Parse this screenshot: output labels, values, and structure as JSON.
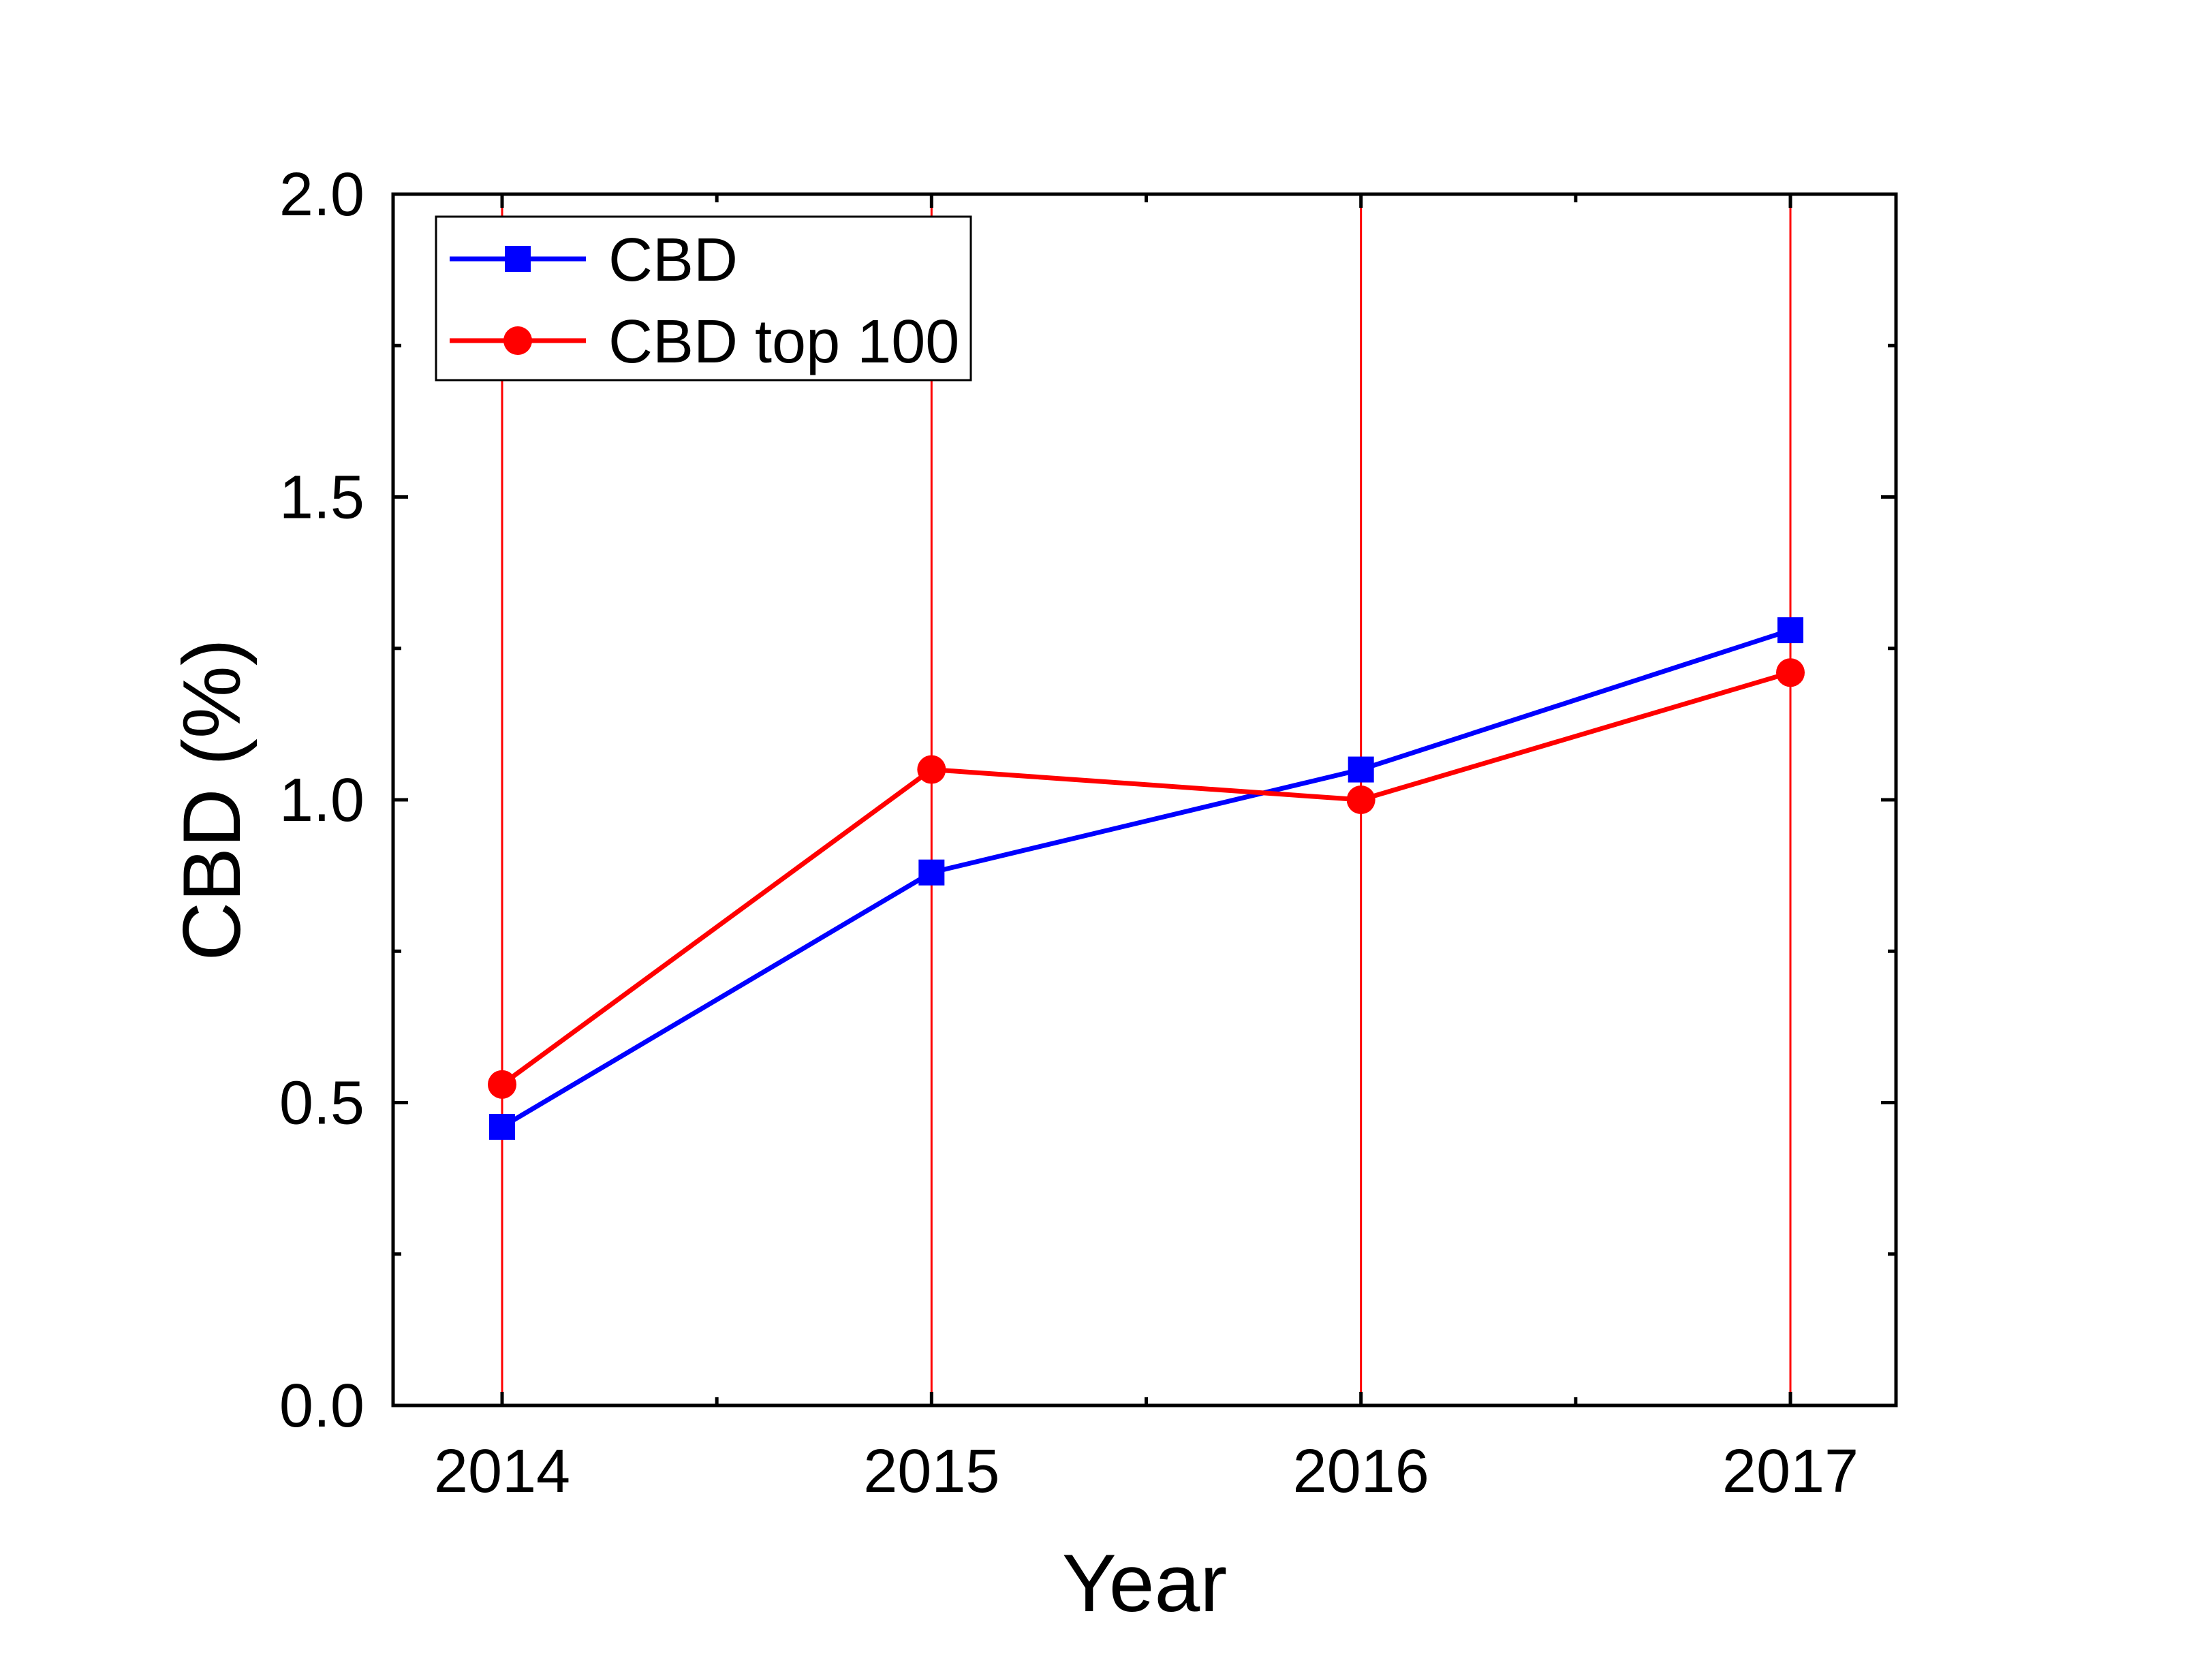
{
  "chart_data": {
    "type": "line",
    "title": "",
    "xlabel": "Year",
    "ylabel": "CBD (%)",
    "categories": [
      "2014",
      "2015",
      "2016",
      "2017"
    ],
    "ylim": [
      0,
      2.0
    ],
    "yticks": [
      "0.0",
      "0.5",
      "1.0",
      "1.5",
      "2.0"
    ],
    "grid": "vertical lines at each year",
    "legend_position": "top-left",
    "series": [
      {
        "name": "CBD",
        "marker": "square",
        "color": "#0000ff",
        "values": [
          0.46,
          0.88,
          1.05,
          1.28
        ]
      },
      {
        "name": "CBD top 100",
        "marker": "circle",
        "color": "#ff0000",
        "values": [
          0.53,
          1.05,
          1.0,
          1.21
        ]
      }
    ],
    "grid_color": "#ff0000",
    "axis_color": "#000000"
  }
}
